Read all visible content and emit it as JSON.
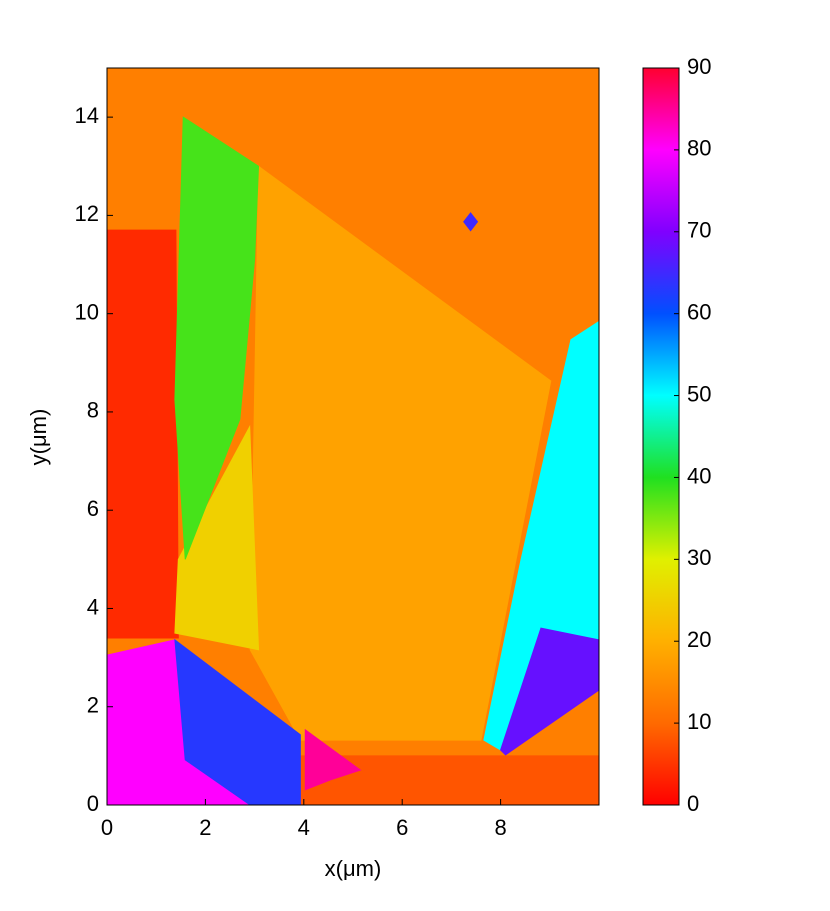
{
  "chart_data": {
    "type": "heatmap",
    "xlabel": "x(μm)",
    "ylabel": "y(μm)",
    "xlim": [
      0,
      10
    ],
    "ylim": [
      0,
      15
    ],
    "xticks": [
      0,
      2,
      4,
      6,
      8
    ],
    "yticks": [
      0,
      2,
      4,
      6,
      8,
      10,
      12,
      14
    ],
    "colorbar": {
      "lim": [
        0,
        90
      ],
      "ticks": [
        0,
        10,
        20,
        30,
        40,
        50,
        60,
        70,
        80,
        90
      ],
      "colors": [
        "#ff0000",
        "#ff6a00",
        "#ffb000",
        "#e0f000",
        "#20e020",
        "#00ffff",
        "#0050ff",
        "#8000ff",
        "#ff00ff",
        "#ff0030"
      ]
    },
    "regions": [
      {
        "value": 13,
        "polygon": [
          [
            0,
            0
          ],
          [
            10,
            0
          ],
          [
            10,
            15
          ],
          [
            0,
            15
          ]
        ]
      },
      {
        "value": 4,
        "polygon": [
          [
            0,
            3.4
          ],
          [
            1.45,
            3.4
          ],
          [
            1.4,
            11.7
          ],
          [
            0,
            11.7
          ]
        ]
      },
      {
        "value": 8,
        "polygon": [
          [
            3.9,
            0
          ],
          [
            10,
            0
          ],
          [
            10,
            1.0
          ],
          [
            3.9,
            1.0
          ]
        ]
      },
      {
        "value": 18,
        "polygon": [
          [
            3.08,
            13.0
          ],
          [
            9.02,
            8.63
          ],
          [
            7.6,
            1.32
          ],
          [
            3.93,
            1.32
          ],
          [
            2.91,
            3.16
          ]
        ]
      },
      {
        "value": 25,
        "polygon": [
          [
            1.45,
            5.0
          ],
          [
            2.9,
            7.7
          ],
          [
            3.08,
            3.16
          ],
          [
            1.38,
            3.5
          ]
        ]
      },
      {
        "value": 38,
        "polygon": [
          [
            1.55,
            14.0
          ],
          [
            3.08,
            13.0
          ],
          [
            3.0,
            11.1
          ],
          [
            2.7,
            7.85
          ],
          [
            1.59,
            5.0
          ],
          [
            1.38,
            8.25
          ]
        ]
      },
      {
        "value": 50,
        "polygon": [
          [
            9.43,
            9.47
          ],
          [
            10,
            9.84
          ],
          [
            10,
            3.36
          ],
          [
            8.82,
            3.56
          ],
          [
            8.0,
            1.12
          ],
          [
            7.66,
            1.32
          ],
          [
            8.41,
            4.97
          ]
        ]
      },
      {
        "value": 68,
        "polygon": [
          [
            8.82,
            3.6
          ],
          [
            10,
            3.36
          ],
          [
            10,
            2.34
          ],
          [
            8.1,
            1.02
          ],
          [
            8.0,
            1.12
          ]
        ]
      },
      {
        "value": 80,
        "polygon": [
          [
            0,
            3.05
          ],
          [
            1.38,
            3.36
          ],
          [
            1.59,
            0.92
          ],
          [
            2.91,
            0
          ],
          [
            0,
            0
          ]
        ]
      },
      {
        "value": 63,
        "polygon": [
          [
            1.38,
            3.36
          ],
          [
            3.93,
            1.43
          ],
          [
            3.93,
            0
          ],
          [
            2.91,
            0
          ],
          [
            1.59,
            0.92
          ]
        ]
      },
      {
        "value": 85,
        "polygon": [
          [
            4.03,
            1.53
          ],
          [
            5.15,
            0.71
          ],
          [
            4.54,
            0.51
          ],
          [
            4.03,
            0.31
          ]
        ]
      },
      {
        "value": 65,
        "polygon": [
          [
            7.25,
            11.87
          ],
          [
            7.39,
            12.05
          ],
          [
            7.53,
            11.87
          ],
          [
            7.39,
            11.69
          ]
        ]
      }
    ]
  }
}
